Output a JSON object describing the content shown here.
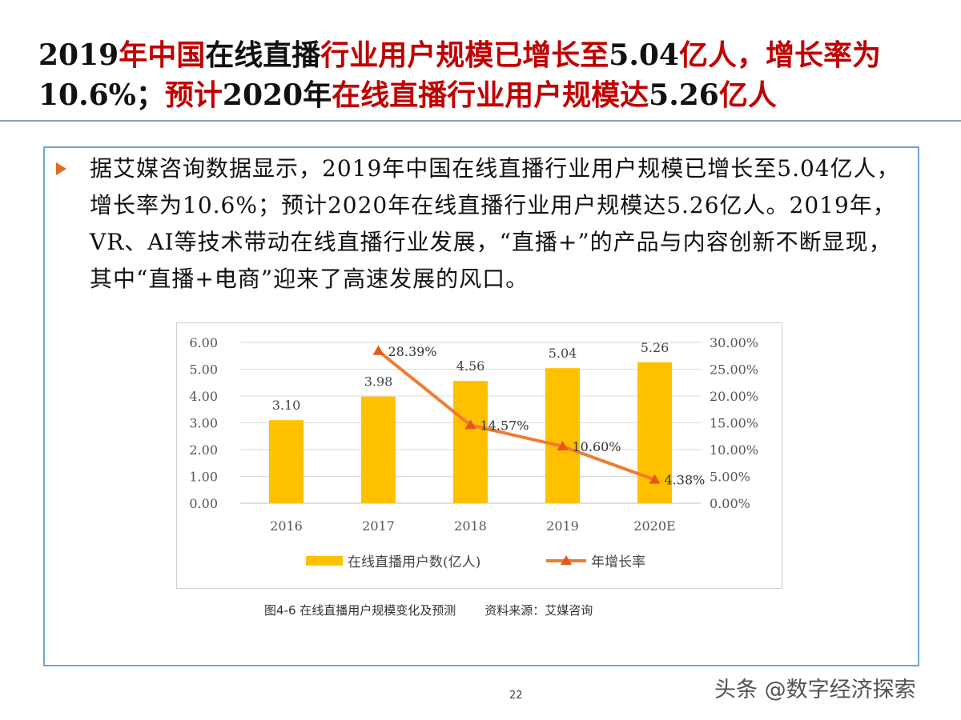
{
  "title": {
    "seg1": "2019",
    "seg2": "年中国",
    "seg3": "在线",
    "seg4": "直播",
    "seg5": "行业用户规模已增长至",
    "seg6": "5.04",
    "seg7": "亿人，增长率为",
    "seg8": "10.6%；",
    "seg9": "预计",
    "seg10": "2020",
    "seg11": "年",
    "seg12": "在线直播行业用户规模达",
    "seg13": "5.26",
    "seg14": "亿人"
  },
  "body": {
    "paragraph": "据艾媒咨询数据显示，2019年中国在线直播行业用户规模已增长至5.04亿人，增长率为10.6%；预计2020年在线直播行业用户规模达5.26亿人。2019年，VR、AI等技术带动在线直播行业发展，“直播+”的产品与内容创新不断显现，其中“直播+电商”迎来了高速发展的风口。"
  },
  "colors": {
    "bar": "#ffc000",
    "line": "#ed7d31",
    "title_red": "#c00000",
    "box_border": "#6ea6d8"
  },
  "chart_data": {
    "type": "bar+line",
    "categories": [
      "2016",
      "2017",
      "2018",
      "2019",
      "2020E"
    ],
    "series": [
      {
        "name": "在线直播用户数(亿人)",
        "type": "bar",
        "axis": "left",
        "values": [
          3.1,
          3.98,
          4.56,
          5.04,
          5.26
        ],
        "labels": [
          "3.10",
          "3.98",
          "4.56",
          "5.04",
          "5.26"
        ]
      },
      {
        "name": "年增长率",
        "type": "line",
        "axis": "right",
        "values": [
          null,
          28.39,
          14.57,
          10.6,
          4.38
        ],
        "labels": [
          "",
          "28.39%",
          "14.57%",
          "10.60%",
          "4.38%"
        ]
      }
    ],
    "y_left": {
      "min": 0,
      "max": 6,
      "ticks": [
        "0.00",
        "1.00",
        "2.00",
        "3.00",
        "4.00",
        "5.00",
        "6.00"
      ]
    },
    "y_right": {
      "min": 0,
      "max": 30,
      "ticks": [
        "0.00%",
        "5.00%",
        "10.00%",
        "15.00%",
        "20.00%",
        "25.00%",
        "30.00%"
      ]
    },
    "legend_position": "bottom"
  },
  "caption": {
    "figure": "图4-6 在线直播用户规模变化及预测",
    "source": "资料来源：艾媒咨询"
  },
  "page_number": "22",
  "watermark": "头条 @数字经济探索"
}
